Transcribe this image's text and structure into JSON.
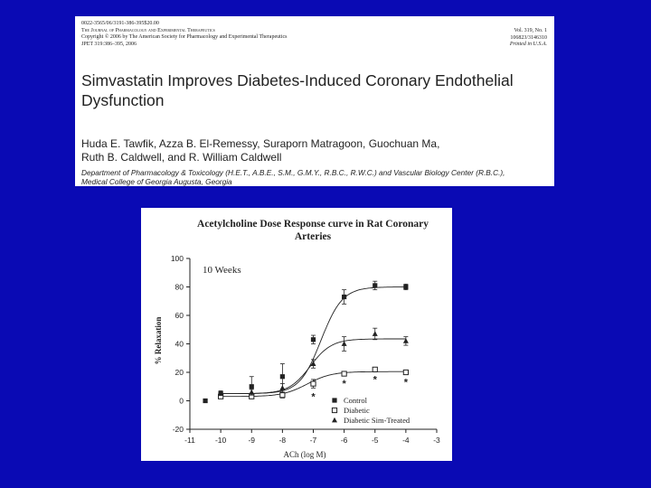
{
  "paper": {
    "header_left": [
      "0022-3565/06/3191-386-395$20.00",
      "The Journal of Pharmacology and Experimental Therapeutics",
      "Copyright © 2006 by The American Society for Pharmacology and Experimental Therapeutics",
      "JPET 319:386–395, 2006"
    ],
    "header_right": [
      "Vol. 319, No. 1",
      "106823/3146310",
      "Printed in U.S.A."
    ],
    "title_line1": "Simvastatin Improves Diabetes-Induced Coronary Endothelial",
    "title_line2": "Dysfunction",
    "authors_line1": "Huda E. Tawfik, Azza B. El-Remessy, Suraporn Matragoon, Guochuan Ma,",
    "authors_line2": "Ruth B. Caldwell, and R. William Caldwell",
    "affiliation_line1": "Department of Pharmacology & Toxicology (H.E.T., A.B.E., S.M., G.M.Y., R.B.C., R.W.C.) and Vascular Biology Center (R.B.C.),",
    "affiliation_line2": "Medical College of Georgia Augusta, Georgia"
  },
  "chart_data": {
    "type": "line",
    "title_line1": "Acetylcholine Dose Response curve in Rat Coronary",
    "title_line2": "Arteries",
    "annotation": "10 Weeks",
    "xlabel": "ACh (log M)",
    "ylabel": "% Relaxation",
    "xlim": [
      -11,
      -3
    ],
    "ylim": [
      -20,
      100
    ],
    "x_ticks": [
      -11,
      -10,
      -9,
      -8,
      -7,
      -6,
      -5,
      -4,
      -3
    ],
    "y_ticks": [
      -20,
      0,
      20,
      40,
      60,
      80,
      100
    ],
    "grid": false,
    "legend_position": "bottom-center",
    "series": [
      {
        "name": "Control",
        "marker": "filled-square",
        "x": [
          -10.5,
          -10,
          -9,
          -8,
          -7,
          -6,
          -5,
          -4
        ],
        "y": [
          0,
          5,
          10,
          17,
          43,
          73,
          81,
          80
        ],
        "err": [
          1,
          2,
          7,
          9,
          3,
          5,
          3,
          2
        ],
        "fit": {
          "bottom": 5,
          "top": 80,
          "logEC50": -6.75,
          "hill": 1.25
        }
      },
      {
        "name": "Diabetic",
        "marker": "open-square",
        "x": [
          -10,
          -9,
          -8,
          -7,
          -6,
          -5,
          -4
        ],
        "y": [
          3,
          3,
          4,
          12,
          19,
          22,
          20
        ],
        "err": [
          1,
          1,
          2,
          3,
          1,
          1,
          1
        ],
        "fit": {
          "bottom": 3,
          "top": 20.5,
          "logEC50": -7.2,
          "hill": 1.1
        }
      },
      {
        "name": "Diabetic Sim-Treated",
        "marker": "filled-triangle",
        "x": [
          -10,
          -9,
          -8,
          -7,
          -6,
          -5,
          -4
        ],
        "y": [
          5,
          6,
          9,
          26,
          40,
          47,
          42
        ],
        "err": [
          1,
          2,
          3,
          3,
          5,
          4,
          3
        ],
        "fit": {
          "bottom": 5,
          "top": 43.5,
          "logEC50": -7.1,
          "hill": 1.25
        }
      }
    ],
    "significance": {
      "symbol": "*",
      "x": [
        -7,
        -6,
        -5,
        -4
      ]
    }
  }
}
